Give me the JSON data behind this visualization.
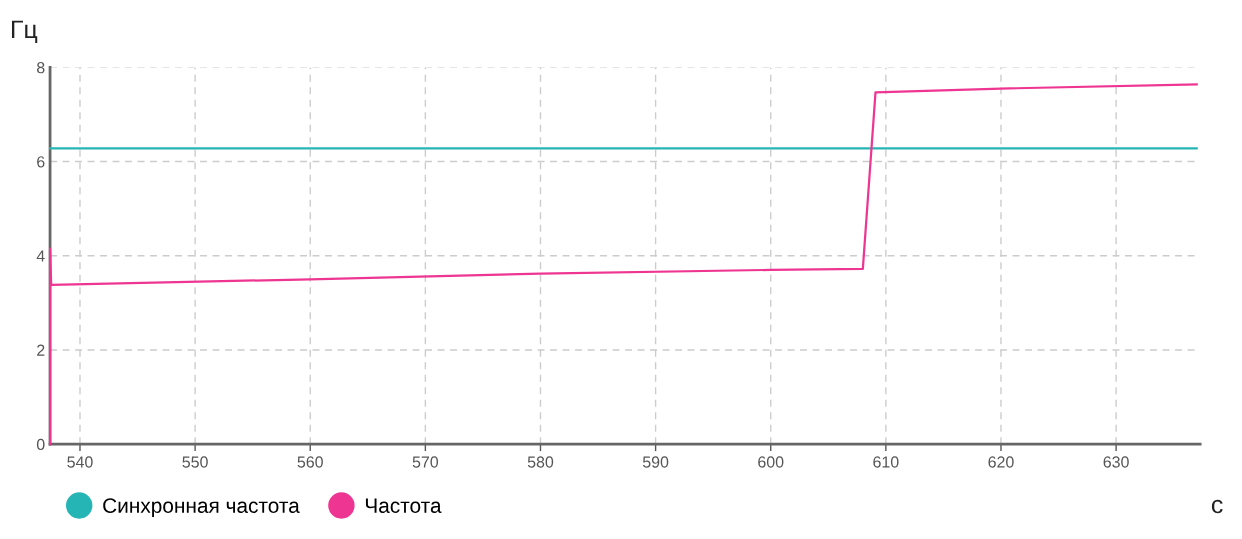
{
  "chart_data": {
    "type": "line",
    "xlabel": "с",
    "ylabel": "Гц",
    "xlim": [
      537.4,
      637.3
    ],
    "xticks": [
      540,
      550,
      560,
      570,
      580,
      590,
      600,
      610,
      620,
      630
    ],
    "ylim": [
      0,
      8
    ],
    "yticks": [
      0,
      2,
      4,
      6,
      8
    ],
    "grid": true,
    "legend": "bottom left",
    "marker": "none",
    "line_style": "solid",
    "series": [
      {
        "name": "Синхронная частота",
        "color": "#26b5b5",
        "x": [
          537.4,
          637.0
        ],
        "values": [
          6.28,
          6.28
        ]
      },
      {
        "name": "Частота",
        "color": "#ee3592",
        "x": [
          537.4,
          537.4,
          537.5,
          560,
          580,
          600,
          608.0,
          609.1,
          620,
          637.0
        ],
        "values": [
          0,
          4.15,
          3.38,
          3.5,
          3.62,
          3.7,
          3.72,
          7.47,
          7.55,
          7.64
        ]
      }
    ]
  }
}
